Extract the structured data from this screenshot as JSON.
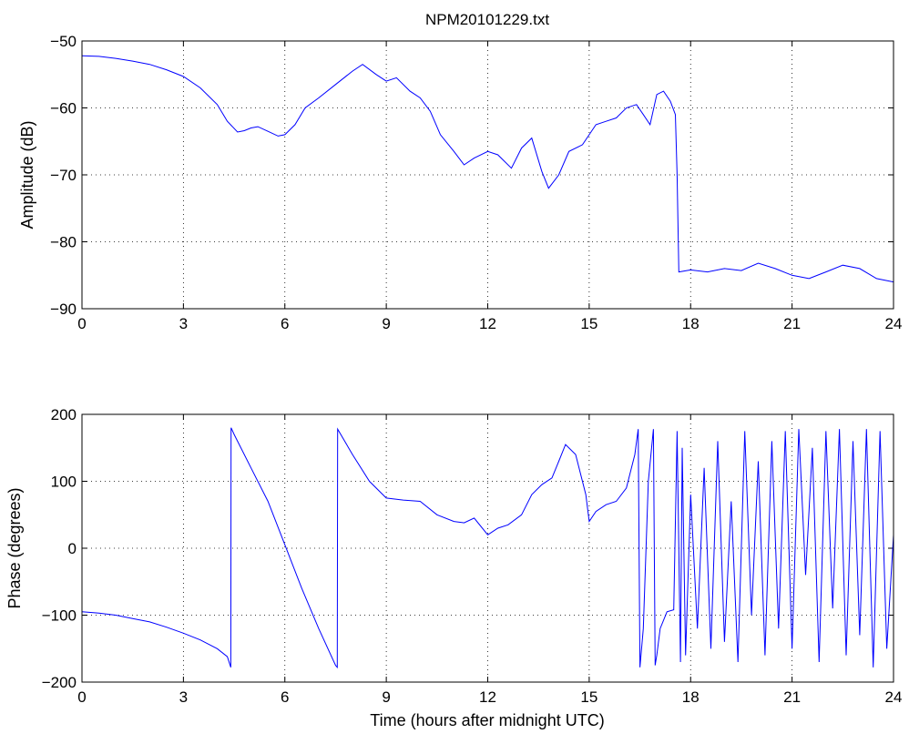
{
  "figure_title": "NPM20101229.txt",
  "chart_data": [
    {
      "type": "line",
      "title": "NPM20101229.txt",
      "xlabel": "",
      "ylabel": "Amplitude (dB)",
      "xlim": [
        0,
        24
      ],
      "ylim": [
        -90,
        -50
      ],
      "xticks": [
        "0",
        "3",
        "6",
        "9",
        "12",
        "15",
        "18",
        "21",
        "24"
      ],
      "yticks": [
        "−90",
        "−80",
        "−70",
        "−60",
        "−50"
      ],
      "grid": true,
      "series": [
        {
          "color": "#0000ff",
          "x": [
            0,
            0.5,
            1,
            1.5,
            2,
            2.5,
            3,
            3.5,
            4,
            4.3,
            4.6,
            4.8,
            5.0,
            5.2,
            5.5,
            5.8,
            6.0,
            6.3,
            6.6,
            7.0,
            7.5,
            8.0,
            8.3,
            8.7,
            9.0,
            9.3,
            9.7,
            10.0,
            10.3,
            10.6,
            11.0,
            11.3,
            11.6,
            12.0,
            12.3,
            12.7,
            13.0,
            13.3,
            13.6,
            13.8,
            14.1,
            14.4,
            14.8,
            15.2,
            15.5,
            15.8,
            16.1,
            16.4,
            16.6,
            16.8,
            17.0,
            17.2,
            17.4,
            17.55,
            17.6,
            17.65,
            18.0,
            18.5,
            19.0,
            19.5,
            20.0,
            20.5,
            21.0,
            21.5,
            22.0,
            22.5,
            23.0,
            23.5,
            24.0
          ],
          "y": [
            -52.2,
            -52.3,
            -52.6,
            -53.0,
            -53.5,
            -54.3,
            -55.3,
            -57.0,
            -59.5,
            -62.0,
            -63.6,
            -63.4,
            -63.0,
            -62.8,
            -63.5,
            -64.2,
            -64.0,
            -62.5,
            -60.0,
            -58.5,
            -56.5,
            -54.5,
            -53.5,
            -55.0,
            -56.0,
            -55.5,
            -57.5,
            -58.5,
            -60.5,
            -64.0,
            -66.5,
            -68.5,
            -67.5,
            -66.5,
            -67.0,
            -69.0,
            -66.0,
            -64.5,
            -69.5,
            -72.0,
            -70.0,
            -66.5,
            -65.5,
            -62.5,
            -62.0,
            -61.5,
            -60.0,
            -59.5,
            -61.0,
            -62.5,
            -58.0,
            -57.5,
            -59.0,
            -61.0,
            -70.0,
            -84.5,
            -84.2,
            -84.5,
            -84.0,
            -84.3,
            -83.2,
            -84.0,
            -85.0,
            -85.5,
            -84.5,
            -83.5,
            -84.0,
            -85.5,
            -86.0
          ]
        }
      ]
    },
    {
      "type": "line",
      "title": "",
      "xlabel": "Time (hours after midnight UTC)",
      "ylabel": "Phase (degrees)",
      "xlim": [
        0,
        24
      ],
      "ylim": [
        -200,
        200
      ],
      "xticks": [
        "0",
        "3",
        "6",
        "9",
        "12",
        "15",
        "18",
        "21",
        "24"
      ],
      "yticks": [
        "−200",
        "−100",
        "0",
        "100",
        "200"
      ],
      "grid": true,
      "series": [
        {
          "color": "#0000ff",
          "x": [
            0,
            0.5,
            1,
            1.5,
            2,
            2.5,
            3,
            3.5,
            4,
            4.3,
            4.4,
            4.41,
            4.5,
            5.0,
            5.5,
            6.0,
            6.5,
            7.0,
            7.5,
            7.55,
            7.56,
            8.0,
            8.5,
            9.0,
            9.5,
            10.0,
            10.5,
            11.0,
            11.3,
            11.6,
            12.0,
            12.3,
            12.6,
            13.0,
            13.3,
            13.6,
            13.9,
            14.1,
            14.3,
            14.6,
            14.9,
            15.0,
            15.2,
            15.5,
            15.8,
            16.1,
            16.35,
            16.45,
            16.5,
            16.6,
            16.75,
            16.9,
            16.95,
            17.0,
            17.1,
            17.3,
            17.5,
            17.6,
            17.7,
            17.75,
            17.85,
            18.0,
            18.2,
            18.4,
            18.6,
            18.8,
            19.0,
            19.2,
            19.4,
            19.6,
            19.8,
            20.0,
            20.2,
            20.4,
            20.6,
            20.8,
            21.0,
            21.2,
            21.4,
            21.6,
            21.8,
            22.0,
            22.2,
            22.4,
            22.6,
            22.8,
            23.0,
            23.2,
            23.4,
            23.6,
            23.8,
            24.0
          ],
          "y": [
            -95,
            -97,
            -100,
            -105,
            -110,
            -118,
            -127,
            -137,
            -150,
            -162,
            -178,
            180,
            170,
            120,
            70,
            5,
            -60,
            -120,
            -175,
            -178,
            178,
            140,
            100,
            75,
            72,
            70,
            50,
            40,
            38,
            45,
            20,
            30,
            35,
            50,
            80,
            95,
            105,
            130,
            155,
            140,
            80,
            40,
            55,
            65,
            70,
            90,
            140,
            178,
            -178,
            -120,
            100,
            178,
            -175,
            -160,
            -120,
            -95,
            -92,
            175,
            -170,
            150,
            -160,
            80,
            -120,
            120,
            -150,
            160,
            -140,
            70,
            -170,
            175,
            -100,
            130,
            -160,
            160,
            -120,
            175,
            -150,
            178,
            -40,
            150,
            -170,
            175,
            -90,
            178,
            -160,
            160,
            -130,
            178,
            -178,
            175,
            -150,
            20
          ]
        }
      ]
    }
  ]
}
